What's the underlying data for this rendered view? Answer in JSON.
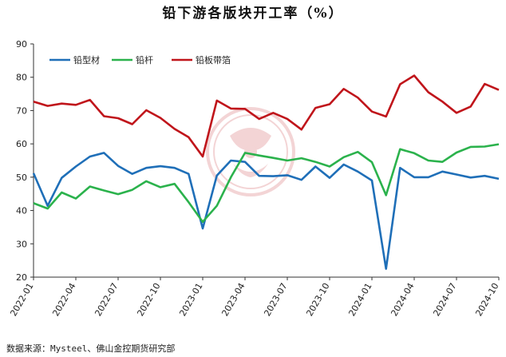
{
  "title": "铅下游各版块开工率（%）",
  "source": "数据来源：Mysteel、佛山金控期货研究部",
  "chart_data": {
    "type": "line",
    "title": "铅下游各版块开工率（%）",
    "xlabel": "",
    "ylabel": "",
    "ylim": [
      20,
      90
    ],
    "yticks": [
      20,
      30,
      40,
      50,
      60,
      70,
      80,
      90
    ],
    "xtick_labels": [
      "2022-01",
      "2022-04",
      "2022-07",
      "2022-10",
      "2023-01",
      "2023-04",
      "2023-07",
      "2023-10",
      "2024-01",
      "2024-04",
      "2024-07",
      "2024-10"
    ],
    "grid": false,
    "legend_position": "top-left",
    "series": [
      {
        "name": "铅型材",
        "color": "#1f6fb8",
        "points": [
          [
            0,
            51.2
          ],
          [
            1,
            41.4
          ],
          [
            2,
            49.8
          ],
          [
            3,
            53.2
          ],
          [
            4,
            56.2
          ],
          [
            5,
            57.3
          ],
          [
            6,
            53.4
          ],
          [
            7,
            51.0
          ],
          [
            8,
            52.8
          ],
          [
            9,
            53.3
          ],
          [
            10,
            52.8
          ],
          [
            11,
            51.0
          ],
          [
            12,
            34.6
          ],
          [
            13,
            50.5
          ],
          [
            14,
            55.0
          ],
          [
            15,
            54.6
          ],
          [
            16,
            50.4
          ],
          [
            17,
            50.3
          ],
          [
            18,
            50.6
          ],
          [
            19,
            49.2
          ],
          [
            20,
            53.2
          ],
          [
            21,
            49.8
          ],
          [
            22,
            53.8
          ],
          [
            23,
            51.7
          ],
          [
            24,
            49.0
          ],
          [
            25,
            22.5
          ],
          [
            26,
            52.8
          ],
          [
            27,
            50.0
          ],
          [
            28,
            50.0
          ],
          [
            29,
            51.7
          ],
          [
            30,
            50.8
          ],
          [
            31,
            49.9
          ],
          [
            32,
            50.4
          ],
          [
            33,
            49.5
          ]
        ]
      },
      {
        "name": "铅杆",
        "color": "#2bb24c",
        "points": [
          [
            0,
            42.2
          ],
          [
            1,
            40.6
          ],
          [
            2,
            45.4
          ],
          [
            3,
            43.6
          ],
          [
            4,
            47.2
          ],
          [
            5,
            46.0
          ],
          [
            6,
            44.9
          ],
          [
            7,
            46.2
          ],
          [
            8,
            48.8
          ],
          [
            9,
            47.0
          ],
          [
            10,
            48.0
          ],
          [
            11,
            42.5
          ],
          [
            12,
            36.6
          ],
          [
            13,
            41.4
          ],
          [
            14,
            50.0
          ],
          [
            15,
            57.3
          ],
          [
            16,
            56.5
          ],
          [
            17,
            55.8
          ],
          [
            18,
            55.0
          ],
          [
            19,
            55.7
          ],
          [
            20,
            54.6
          ],
          [
            21,
            53.2
          ],
          [
            22,
            56.0
          ],
          [
            23,
            57.6
          ],
          [
            24,
            54.5
          ],
          [
            25,
            44.6
          ],
          [
            26,
            58.4
          ],
          [
            27,
            57.2
          ],
          [
            28,
            55.0
          ],
          [
            29,
            54.6
          ],
          [
            30,
            57.4
          ],
          [
            31,
            59.1
          ],
          [
            32,
            59.2
          ],
          [
            33,
            59.9
          ]
        ]
      },
      {
        "name": "铅板带箔",
        "color": "#c0151b",
        "points": [
          [
            0,
            72.7
          ],
          [
            1,
            71.4
          ],
          [
            2,
            72.1
          ],
          [
            3,
            71.7
          ],
          [
            4,
            73.2
          ],
          [
            5,
            68.3
          ],
          [
            6,
            67.7
          ],
          [
            7,
            65.9
          ],
          [
            8,
            70.1
          ],
          [
            9,
            67.8
          ],
          [
            10,
            64.5
          ],
          [
            11,
            62.0
          ],
          [
            12,
            56.2
          ],
          [
            13,
            73.0
          ],
          [
            14,
            70.6
          ],
          [
            15,
            70.5
          ],
          [
            16,
            67.5
          ],
          [
            17,
            69.3
          ],
          [
            18,
            67.5
          ],
          [
            19,
            64.3
          ],
          [
            20,
            70.8
          ],
          [
            21,
            71.9
          ],
          [
            22,
            76.5
          ],
          [
            23,
            73.9
          ],
          [
            24,
            69.7
          ],
          [
            25,
            68.2
          ],
          [
            26,
            77.9
          ],
          [
            27,
            80.5
          ],
          [
            28,
            75.5
          ],
          [
            29,
            72.7
          ],
          [
            30,
            69.3
          ],
          [
            31,
            71.2
          ],
          [
            32,
            78.0
          ],
          [
            33,
            76.2
          ]
        ]
      }
    ]
  }
}
